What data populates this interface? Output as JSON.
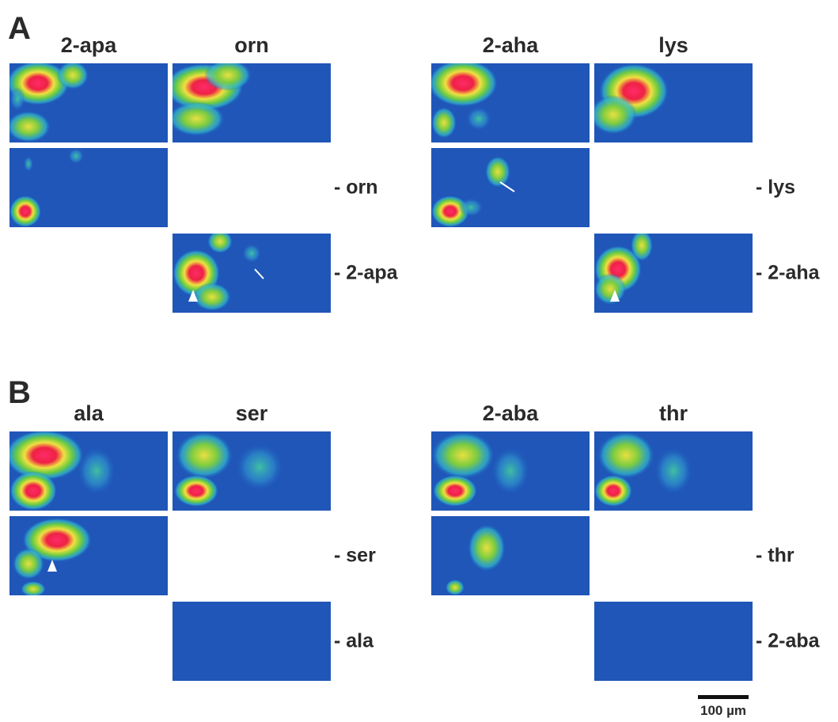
{
  "panels": [
    {
      "label": "A",
      "groups": [
        {
          "columns": [
            "2-apa",
            "orn"
          ],
          "row_labels": [
            "- orn",
            "- 2-apa"
          ]
        },
        {
          "columns": [
            "2-aha",
            "lys"
          ],
          "row_labels": [
            "- lys",
            "- 2-aha"
          ]
        }
      ]
    },
    {
      "label": "B",
      "groups": [
        {
          "columns": [
            "ala",
            "ser"
          ],
          "row_labels": [
            "- ser",
            "- ala"
          ]
        },
        {
          "columns": [
            "2-aba",
            "thr"
          ],
          "row_labels": [
            "- thr",
            "- 2-aba"
          ]
        }
      ]
    }
  ],
  "scale_bar": "100 µm"
}
